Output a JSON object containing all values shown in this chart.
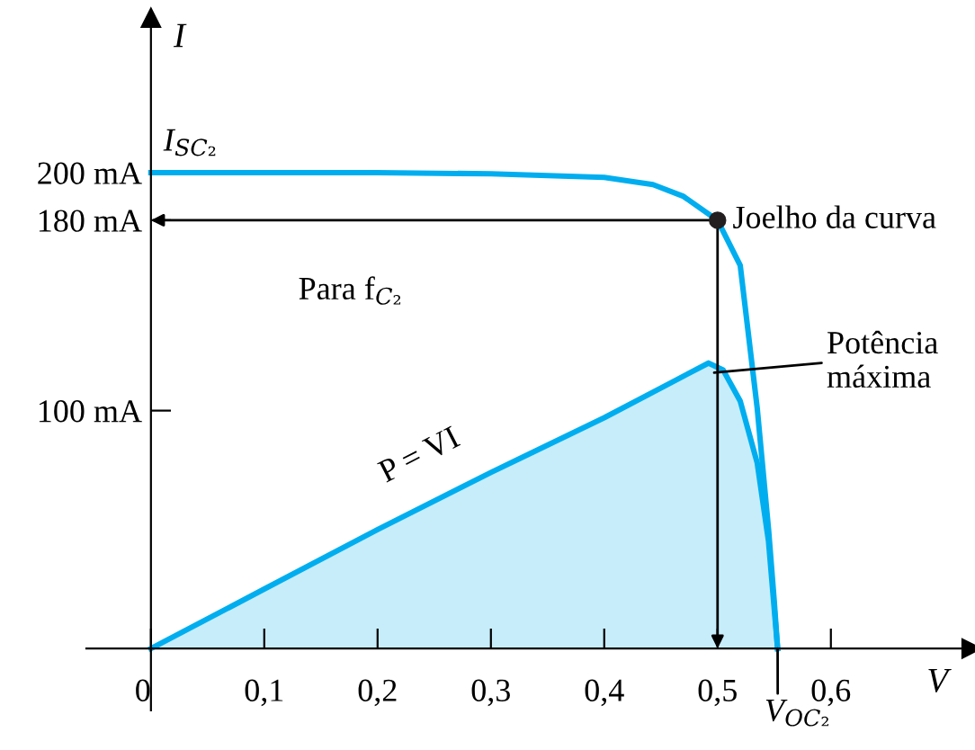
{
  "chart_data": {
    "type": "line",
    "xlabel": "V",
    "ylabel": "I",
    "series": [
      {
        "color": "#00aeef",
        "x": [
          0,
          0.1,
          0.2,
          0.3,
          0.4,
          0.443,
          0.47,
          0.5,
          0.52,
          0.535,
          0.545,
          0.55,
          0.553
        ],
        "values": [
          200,
          200,
          200,
          199.5,
          198,
          195,
          190,
          180,
          161,
          101,
          50,
          20,
          0
        ]
      },
      {
        "type": "area",
        "color": "#00aeef",
        "x": [
          0,
          0.1,
          0.2,
          0.3,
          0.4,
          0.46,
          0.492,
          0.505,
          0.52,
          0.535,
          0.545,
          0.553
        ],
        "values": [
          0,
          25,
          50,
          74,
          97,
          112,
          120,
          117,
          104,
          78,
          45,
          0
        ]
      }
    ],
    "xlim": [
      -0.057,
      0.724
    ],
    "ylim": [
      -26,
      265
    ],
    "xticks": [
      {
        "value": 0,
        "label": "0"
      },
      {
        "value": 0.1,
        "label": "0,1"
      },
      {
        "value": 0.2,
        "label": "0,2"
      },
      {
        "value": 0.3,
        "label": "0,3"
      },
      {
        "value": 0.4,
        "label": "0,4"
      },
      {
        "value": 0.5,
        "label": "0,5"
      },
      {
        "value": 0.6,
        "label": "0,6"
      }
    ],
    "yticks": [
      {
        "value": 100,
        "label": "100 mA"
      },
      {
        "value": 180,
        "label": "180 mA"
      },
      {
        "value": 200,
        "label": "200 mA"
      }
    ],
    "annotations": [
      {
        "text": "Joelho da curva",
        "x": 0.5,
        "y": 180
      },
      {
        "text": "Potência\nmáxima",
        "x": 0.492,
        "y": 120
      },
      {
        "text": "V$_{OC₂}$",
        "x": 0.553,
        "y": 0
      },
      {
        "text": "I$_{SC₂}$",
        "x": 0,
        "y": 200
      },
      {
        "text": "Para f$_{C₂}$"
      },
      {
        "text": "P = VI"
      }
    ],
    "grid": false,
    "legend": false,
    "marker": "none",
    "line_style": "solid"
  }
}
